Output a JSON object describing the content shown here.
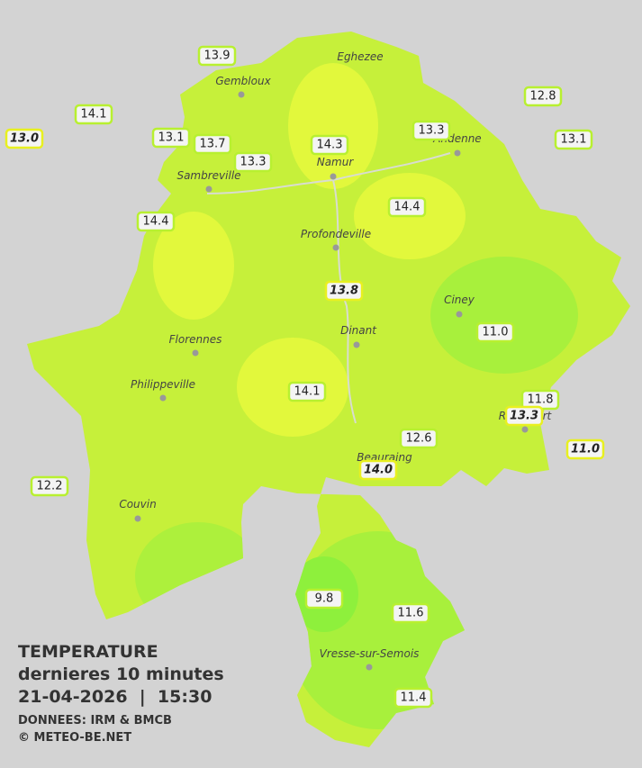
{
  "map": {
    "cities": [
      "Eghezee",
      "Gembloux",
      "Andenne",
      "Namur",
      "Sambreville",
      "Profondeville",
      "Ciney",
      "Dinant",
      "Florennes",
      "Philippeville",
      "Rochefort",
      "Beauraing",
      "Couvin",
      "Vresse-sur-Semois"
    ],
    "stations": [
      {
        "label": "13.9",
        "italic": false
      },
      {
        "label": "14.1",
        "italic": false
      },
      {
        "label": "13.0",
        "italic": true
      },
      {
        "label": "13.1",
        "italic": false
      },
      {
        "label": "13.7",
        "italic": false
      },
      {
        "label": "13.3",
        "italic": false
      },
      {
        "label": "14.3",
        "italic": false
      },
      {
        "label": "13.3",
        "italic": false
      },
      {
        "label": "12.8",
        "italic": false
      },
      {
        "label": "13.1",
        "italic": false
      },
      {
        "label": "14.4",
        "italic": false
      },
      {
        "label": "14.4",
        "italic": false
      },
      {
        "label": "13.8",
        "italic": true
      },
      {
        "label": "11.0",
        "italic": false
      },
      {
        "label": "14.1",
        "italic": false
      },
      {
        "label": "11.8",
        "italic": false
      },
      {
        "label": "13.3",
        "italic": true
      },
      {
        "label": "12.6",
        "italic": false
      },
      {
        "label": "14.0",
        "italic": true
      },
      {
        "label": "11.0",
        "italic": true
      },
      {
        "label": "12.2",
        "italic": false
      },
      {
        "label": "9.8",
        "italic": false
      },
      {
        "label": "11.6",
        "italic": false
      },
      {
        "label": "11.4",
        "italic": false
      }
    ],
    "legend": {
      "title": "TEMPERATURE",
      "subtitle": "dernieres 10 minutes",
      "datetime": "21-04-2026  |  15:30",
      "source": "DONNEES: IRM & BMCB",
      "copyright": "© METEO-BE.NET"
    }
  }
}
